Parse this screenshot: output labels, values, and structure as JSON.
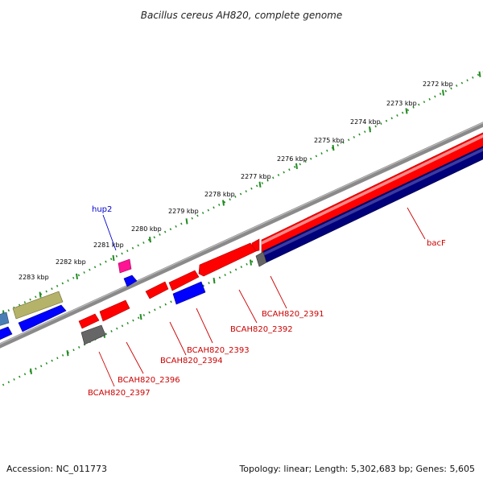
{
  "title": "Bacillus cereus AH820, complete genome",
  "footer": {
    "accession": "Accession: NC_011773",
    "summary": "Topology: linear; Length: 5,302,683 bp; Genes: 5,605"
  },
  "scale_ticks": [
    "2272 kbp",
    "2273 kbp",
    "2274 kbp",
    "2275 kbp",
    "2276 kbp",
    "2277 kbp",
    "2278 kbp",
    "2279 kbp",
    "2280 kbp",
    "2281 kbp",
    "2282 kbp",
    "2283 kbp"
  ],
  "gene_labels": {
    "hup2": "hup2",
    "bacF": "bacF",
    "g2391": "BCAH820_2391",
    "g2392": "BCAH820_2392",
    "g2393": "BCAH820_2393",
    "g2394": "BCAH820_2394",
    "g2396": "BCAH820_2396",
    "g2397": "BCAH820_2397"
  },
  "colors": {
    "backbone": "#8a8a8a",
    "scale_green": "#228b22",
    "gene_red": "#ff0000",
    "gene_blue": "#0000ff",
    "gene_navy": "#00007a",
    "gene_magenta": "#ff1493",
    "gene_olive": "#b5b26a",
    "gene_gray": "#666666",
    "gene_steelblue": "#4a7fb5",
    "label_red": "#cc0000",
    "label_blue": "#0000cc"
  }
}
